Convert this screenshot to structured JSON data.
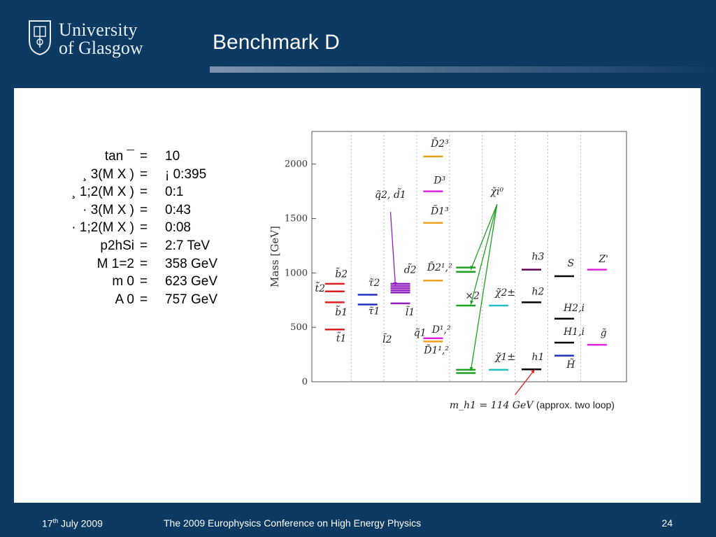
{
  "header": {
    "logo_line1": "University",
    "logo_line2": "of Glasgow",
    "title": "Benchmark D"
  },
  "params": [
    {
      "lhs": "tan ¯",
      "rhs": "10"
    },
    {
      "lhs": "¸ 3(M X )",
      "rhs": "¡ 0:395"
    },
    {
      "lhs": "¸ 1;2(M X )",
      "rhs": "0:1"
    },
    {
      "lhs": "· 3(M X )",
      "rhs": "0:43"
    },
    {
      "lhs": "· 1;2(M X )",
      "rhs": "0:08"
    },
    {
      "lhs": "p2hSi",
      "rhs": "2:7 TeV"
    },
    {
      "lhs": "M 1=2",
      "rhs": "358 GeV"
    },
    {
      "lhs": "m 0",
      "rhs": "623 GeV"
    },
    {
      "lhs": "A 0",
      "rhs": "757 GeV"
    }
  ],
  "equals": "=",
  "chart_data": {
    "type": "scatter",
    "ylabel": "Mass [GeV]",
    "ylim": [
      0,
      2300
    ],
    "yticks": [
      0,
      500,
      1000,
      1500,
      2000
    ],
    "levels": [
      {
        "name": "b̃2",
        "x": 1,
        "y": 900,
        "color": "#e02020"
      },
      {
        "name": "t̃2",
        "x": 1,
        "y": 830,
        "color": "#e02020"
      },
      {
        "name": "b̃1",
        "x": 1,
        "y": 730,
        "color": "#e02020"
      },
      {
        "name": "t̃1",
        "x": 1,
        "y": 480,
        "color": "#e02020"
      },
      {
        "name": "τ̃2",
        "x": 2,
        "y": 800,
        "color": "#2030c0"
      },
      {
        "name": "τ̃1",
        "x": 2,
        "y": 710,
        "color": "#2030c0"
      },
      {
        "name": "d̃2",
        "x": 3,
        "y": 900,
        "color": "#9020c0"
      },
      {
        "name": "q̃2,d̃1",
        "x": 3,
        "y": 880,
        "color": "#9020c0"
      },
      {
        "name": "q̃2,d̃1",
        "x": 3,
        "y": 860,
        "color": "#9020c0"
      },
      {
        "name": "q̃2,d̃1",
        "x": 3,
        "y": 840,
        "color": "#9020c0"
      },
      {
        "name": "q̃1",
        "x": 3,
        "y": 820,
        "color": "#9020c0"
      },
      {
        "name": "l̃1",
        "x": 3,
        "y": 720,
        "color": "#9020c0"
      },
      {
        "name": "D̃2^3",
        "x": 4,
        "y": 2070,
        "color": "#f0a020"
      },
      {
        "name": "D^3",
        "x": 4,
        "y": 1750,
        "color": "#e020e0"
      },
      {
        "name": "D̃1^3",
        "x": 4,
        "y": 1460,
        "color": "#f0a020"
      },
      {
        "name": "D̃2^1,2",
        "x": 4,
        "y": 930,
        "color": "#f0a020"
      },
      {
        "name": "D^1,2",
        "x": 4,
        "y": 400,
        "color": "#e020e0"
      },
      {
        "name": "D̃1^1,2",
        "x": 4,
        "y": 370,
        "color": "#f0a020"
      },
      {
        "name": "χ̃i0",
        "x": 5,
        "y": 1050,
        "color": "#20a020"
      },
      {
        "name": "χ̃i0",
        "x": 5,
        "y": 1010,
        "color": "#20a020"
      },
      {
        "name": "χ̃i0",
        "x": 5,
        "y": 700,
        "color": "#20a020"
      },
      {
        "name": "χ̃i0",
        "x": 5,
        "y": 110,
        "color": "#20a020"
      },
      {
        "name": "χ̃i0",
        "x": 5,
        "y": 80,
        "color": "#20a020"
      },
      {
        "name": "χ̃2±",
        "x": 6,
        "y": 700,
        "color": "#20c0c0"
      },
      {
        "name": "χ̃1±",
        "x": 6,
        "y": 110,
        "color": "#20c0c0"
      },
      {
        "name": "h3",
        "x": 7,
        "y": 1030,
        "color": "#600060"
      },
      {
        "name": "h2",
        "x": 7,
        "y": 730,
        "color": "#000000"
      },
      {
        "name": "h1",
        "x": 7,
        "y": 114,
        "color": "#000000"
      },
      {
        "name": "S",
        "x": 8,
        "y": 970,
        "color": "#000000"
      },
      {
        "name": "H2,i",
        "x": 8,
        "y": 580,
        "color": "#000000"
      },
      {
        "name": "H1,i",
        "x": 8,
        "y": 360,
        "color": "#000000"
      },
      {
        "name": "H̃",
        "x": 8,
        "y": 240,
        "color": "#2030c0"
      },
      {
        "name": "Z'",
        "x": 9,
        "y": 1030,
        "color": "#e020e0"
      },
      {
        "name": "g̃",
        "x": 9,
        "y": 340,
        "color": "#e020e0"
      }
    ],
    "labels": [
      {
        "text": "b̃2",
        "x": 1.2,
        "y": 960
      },
      {
        "text": "t̃2",
        "x": 0.55,
        "y": 830
      },
      {
        "text": "b̃1",
        "x": 1.2,
        "y": 610
      },
      {
        "text": "t̃1",
        "x": 1.2,
        "y": 370
      },
      {
        "text": "τ̃2",
        "x": 2.2,
        "y": 880
      },
      {
        "text": "τ̃1",
        "x": 2.2,
        "y": 620
      },
      {
        "text": "d̃2",
        "x": 3.3,
        "y": 1000
      },
      {
        "text": "q̃2, d̃1",
        "x": 2.7,
        "y": 1690
      },
      {
        "text": "l̃1",
        "x": 3.3,
        "y": 610
      },
      {
        "text": "l̃2",
        "x": 2.6,
        "y": 360
      },
      {
        "text": "q̃1",
        "x": 3.6,
        "y": 420
      },
      {
        "text": "D̃2³",
        "x": 4.2,
        "y": 2160
      },
      {
        "text": "D³",
        "x": 4.2,
        "y": 1820
      },
      {
        "text": "D̃1³",
        "x": 4.2,
        "y": 1540
      },
      {
        "text": "D̃2¹,²",
        "x": 4.2,
        "y": 1020
      },
      {
        "text": "D¹,²",
        "x": 4.25,
        "y": 450
      },
      {
        "text": "D̃1¹,²",
        "x": 4.1,
        "y": 260
      },
      {
        "text": "χ̃i⁰",
        "x": 5.95,
        "y": 1720
      },
      {
        "text": "×2",
        "x": 5.2,
        "y": 760
      },
      {
        "text": "χ̃2±",
        "x": 6.2,
        "y": 790
      },
      {
        "text": "χ̃1±",
        "x": 6.2,
        "y": 200
      },
      {
        "text": "h3",
        "x": 7.2,
        "y": 1120
      },
      {
        "text": "h2",
        "x": 7.2,
        "y": 800
      },
      {
        "text": "h1",
        "x": 7.2,
        "y": 200
      },
      {
        "text": "S",
        "x": 8.2,
        "y": 1060
      },
      {
        "text": "H2,i",
        "x": 8.3,
        "y": 650
      },
      {
        "text": "H1,i",
        "x": 8.3,
        "y": 430
      },
      {
        "text": "H̃",
        "x": 8.2,
        "y": 130
      },
      {
        "text": "Z'",
        "x": 9.2,
        "y": 1100
      },
      {
        "text": "g̃",
        "x": 9.2,
        "y": 420
      }
    ],
    "annotation_prefix": "m_h1 = 114 GeV",
    "annotation": "(approx. two loop)"
  },
  "footer": {
    "date_day": "17",
    "date_sup": "th",
    "date_rest": " July 2009",
    "conference": "The 2009 Europhysics Conference on High Energy Physics",
    "page": "24"
  }
}
